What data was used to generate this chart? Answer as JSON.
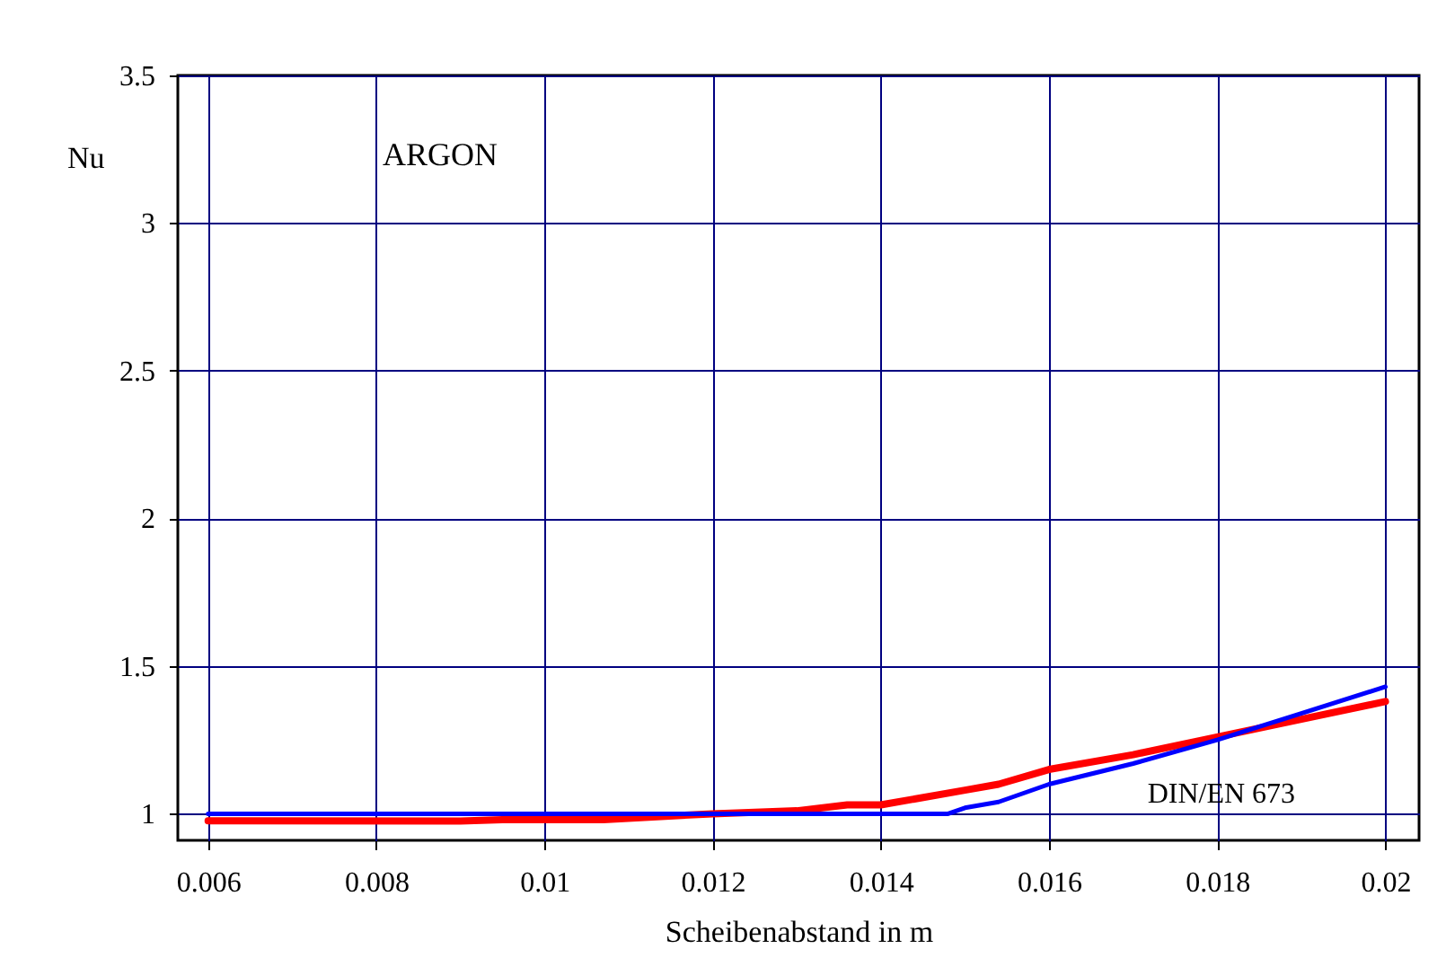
{
  "chart_data": {
    "type": "line",
    "xlabel": "Scheibenabstand in m",
    "ylabel": "Nu",
    "annotations": [
      "ARGON"
    ],
    "xlim": [
      0.00564,
      0.0204
    ],
    "xticks": [
      0.006,
      0.008,
      0.01,
      0.012,
      0.014,
      0.016,
      0.018,
      0.02
    ],
    "ylim": [
      0.91,
      3.5
    ],
    "yticks": [
      1,
      1.5,
      2,
      2.5,
      3,
      3.5
    ],
    "grid": true,
    "legend": false,
    "line_style": "solid",
    "marker": "none",
    "series": [
      {
        "color": "#ff0000",
        "x": [
          0.006,
          0.009,
          0.0095,
          0.0107,
          0.012,
          0.013,
          0.0136,
          0.014,
          0.015,
          0.0154,
          0.016,
          0.017,
          0.018,
          0.019,
          0.02
        ],
        "values": [
          0.976,
          0.975,
          0.98,
          0.98,
          1.0,
          1.01,
          1.03,
          1.03,
          1.08,
          1.1,
          1.15,
          1.2,
          1.26,
          1.32,
          1.38
        ]
      },
      {
        "name": "DIN/EN 673",
        "color": "#0000ff",
        "x": [
          0.006,
          0.012,
          0.0148,
          0.015,
          0.0154,
          0.016,
          0.017,
          0.018,
          0.019,
          0.02
        ],
        "values": [
          1.0,
          1.0,
          1.0,
          1.02,
          1.04,
          1.1,
          1.17,
          1.25,
          1.34,
          1.43
        ]
      }
    ]
  }
}
